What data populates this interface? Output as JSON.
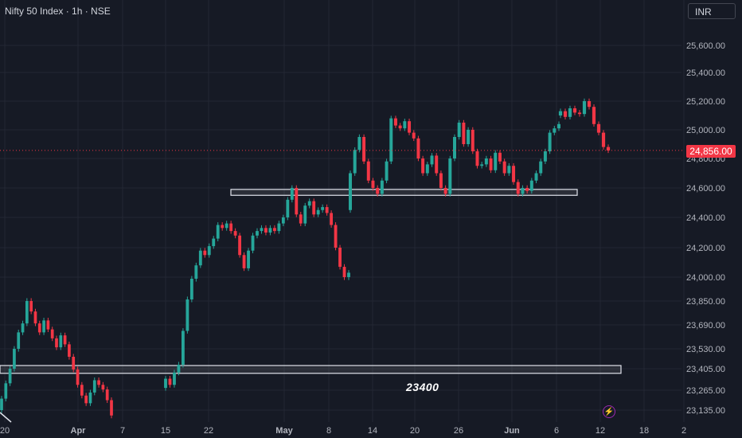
{
  "header": {
    "title": "Nifty 50 Index · 1h · NSE",
    "currency": "INR"
  },
  "annotation": {
    "label": "23400"
  },
  "current_price": "24,856.00",
  "icons": {
    "lightning": "lightning-icon"
  },
  "colors": {
    "up": "#26a69a",
    "down": "#f23645",
    "background": "#161a25",
    "grid": "#232734"
  },
  "chart_data": {
    "type": "candlestick",
    "title": "Nifty 50 Index · 1h · NSE",
    "y_ticks": [
      "25,600.00",
      "25,400.00",
      "25,200.00",
      "25,000.00",
      "24,800.00",
      "24,600.00",
      "24,400.00",
      "24,200.00",
      "24,000.00",
      "23,850.00",
      "23,690.00",
      "23,530.00",
      "23,405.00",
      "23,265.00",
      "23,135.00"
    ],
    "x_ticks": [
      "20",
      "Apr",
      "7",
      "15",
      "22",
      "May",
      "8",
      "14",
      "20",
      "26",
      "Jun",
      "6",
      "12",
      "18",
      "2"
    ],
    "current_price": 24856,
    "price_line_style": "dotted red",
    "support_zones": [
      {
        "low": 24550,
        "high": 24590
      },
      {
        "low": 23375,
        "high": 23425,
        "label": "23400"
      }
    ],
    "series": [
      {
        "segment": "mar-apr",
        "points": [
          [
            23135,
            23210
          ],
          [
            23210,
            23310
          ],
          [
            23310,
            23405
          ],
          [
            23405,
            23530
          ],
          [
            23530,
            23640
          ],
          [
            23640,
            23700
          ],
          [
            23700,
            23850
          ],
          [
            23850,
            23780
          ],
          [
            23780,
            23700
          ],
          [
            23700,
            23640
          ],
          [
            23640,
            23720
          ],
          [
            23720,
            23660
          ],
          [
            23660,
            23600
          ],
          [
            23600,
            23540
          ],
          [
            23540,
            23620
          ],
          [
            23620,
            23560
          ],
          [
            23560,
            23480
          ],
          [
            23480,
            23400
          ],
          [
            23400,
            23300
          ],
          [
            23300,
            23230
          ],
          [
            23230,
            23180
          ],
          [
            23180,
            23250
          ],
          [
            23250,
            23330
          ],
          [
            23330,
            23300
          ],
          [
            23300,
            23270
          ],
          [
            23270,
            23200
          ],
          [
            23200,
            23100
          ]
        ]
      },
      {
        "segment": "apr-may",
        "points": [
          [
            23280,
            23340
          ],
          [
            23340,
            23300
          ],
          [
            23300,
            23380
          ],
          [
            23380,
            23430
          ],
          [
            23430,
            23650
          ],
          [
            23650,
            23860
          ],
          [
            23860,
            23990
          ],
          [
            23990,
            24080
          ],
          [
            24080,
            24180
          ],
          [
            24180,
            24150
          ],
          [
            24150,
            24210
          ],
          [
            24210,
            24260
          ],
          [
            24260,
            24350
          ],
          [
            24350,
            24330
          ],
          [
            24330,
            24360
          ],
          [
            24360,
            24310
          ],
          [
            24310,
            24280
          ],
          [
            24280,
            24150
          ],
          [
            24150,
            24060
          ],
          [
            24060,
            24180
          ],
          [
            24180,
            24280
          ],
          [
            24280,
            24310
          ],
          [
            24310,
            24330
          ],
          [
            24330,
            24300
          ],
          [
            24300,
            24330
          ],
          [
            24330,
            24310
          ],
          [
            24310,
            24360
          ],
          [
            24360,
            24400
          ],
          [
            24400,
            24520
          ],
          [
            24520,
            24600
          ],
          [
            24600,
            24420
          ],
          [
            24420,
            24360
          ],
          [
            24360,
            24480
          ],
          [
            24480,
            24510
          ],
          [
            24510,
            24420
          ],
          [
            24420,
            24450
          ],
          [
            24450,
            24470
          ],
          [
            24470,
            24430
          ],
          [
            24430,
            24350
          ],
          [
            24350,
            24200
          ],
          [
            24200,
            24070
          ],
          [
            24070,
            24000
          ],
          [
            24000,
            24030
          ]
        ]
      },
      {
        "segment": "may-jun",
        "points": [
          [
            24450,
            24700
          ],
          [
            24700,
            24860
          ],
          [
            24860,
            24950
          ],
          [
            24950,
            24780
          ],
          [
            24780,
            24650
          ],
          [
            24650,
            24600
          ],
          [
            24600,
            24560
          ],
          [
            24560,
            24650
          ],
          [
            24650,
            24780
          ],
          [
            24780,
            25080
          ],
          [
            25080,
            25030
          ],
          [
            25030,
            25010
          ],
          [
            25010,
            25060
          ],
          [
            25060,
            24980
          ],
          [
            24980,
            24940
          ],
          [
            24940,
            24800
          ],
          [
            24800,
            24700
          ],
          [
            24700,
            24760
          ],
          [
            24760,
            24820
          ],
          [
            24820,
            24700
          ],
          [
            24700,
            24600
          ],
          [
            24600,
            24560
          ],
          [
            24560,
            24800
          ],
          [
            24800,
            24950
          ],
          [
            24950,
            25050
          ],
          [
            25050,
            24900
          ],
          [
            24900,
            25000
          ],
          [
            25000,
            24850
          ],
          [
            24850,
            24750
          ],
          [
            24750,
            24760
          ],
          [
            24760,
            24800
          ],
          [
            24800,
            24720
          ],
          [
            24720,
            24840
          ],
          [
            24840,
            24780
          ],
          [
            24780,
            24700
          ],
          [
            24700,
            24750
          ],
          [
            24750,
            24640
          ],
          [
            24640,
            24560
          ],
          [
            24560,
            24600
          ],
          [
            24600,
            24580
          ],
          [
            24580,
            24650
          ],
          [
            24650,
            24700
          ],
          [
            24700,
            24780
          ],
          [
            24780,
            24850
          ],
          [
            24850,
            24980
          ],
          [
            24980,
            25010
          ],
          [
            25010,
            25040
          ]
        ]
      },
      {
        "segment": "jun",
        "points": [
          [
            25100,
            25130
          ],
          [
            25130,
            25090
          ],
          [
            25090,
            25150
          ],
          [
            25150,
            25120
          ],
          [
            25120,
            25110
          ],
          [
            25110,
            25200
          ],
          [
            25200,
            25160
          ],
          [
            25160,
            25040
          ],
          [
            25040,
            24980
          ],
          [
            24980,
            24880
          ],
          [
            24880,
            24856
          ]
        ]
      }
    ]
  }
}
